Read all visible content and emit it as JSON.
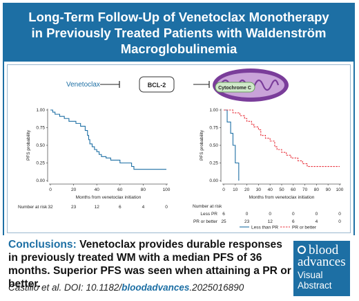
{
  "header": {
    "title_lines": [
      "Long-Term Follow-Up of Venetoclax Monotherapy",
      "in Previously Treated Patients with Waldenström",
      "Macroglobulinemia"
    ]
  },
  "mechanism": {
    "drug": "Venetoclax",
    "target": "BCL-2",
    "organelle_label": "Cytochrome C"
  },
  "colors": {
    "brand": "#1d6fa4",
    "series_dashed": "#e8323c",
    "series_solid": "#1d6fa4"
  },
  "chart_data": [
    {
      "type": "line",
      "title": "",
      "xlabel": "Months from venetoclax initiation",
      "ylabel": "PFS probability",
      "xlim": [
        0,
        100
      ],
      "ylim": [
        0,
        1
      ],
      "x_ticks": [
        0,
        20,
        40,
        60,
        80,
        100
      ],
      "y_ticks": [
        "0.00",
        "0.25",
        "0.50",
        "0.75",
        "1.00"
      ],
      "series": [
        {
          "style": "solid",
          "color": "#1d6fa4",
          "steps": [
            [
              0,
              1.0
            ],
            [
              2,
              0.97
            ],
            [
              4,
              0.94
            ],
            [
              8,
              0.91
            ],
            [
              12,
              0.88
            ],
            [
              16,
              0.84
            ],
            [
              22,
              0.81
            ],
            [
              26,
              0.77
            ],
            [
              30,
              0.71
            ],
            [
              32,
              0.64
            ],
            [
              33,
              0.58
            ],
            [
              34,
              0.52
            ],
            [
              36,
              0.48
            ],
            [
              38,
              0.44
            ],
            [
              40,
              0.41
            ],
            [
              42,
              0.37
            ],
            [
              44,
              0.34
            ],
            [
              48,
              0.32
            ],
            [
              52,
              0.29
            ],
            [
              60,
              0.25
            ],
            [
              70,
              0.2
            ],
            [
              72,
              0.16
            ],
            [
              100,
              0.16
            ]
          ]
        }
      ],
      "risk_table": {
        "label": "Number at risk",
        "values": [
          "32",
          "23",
          "12",
          "6",
          "4",
          "0"
        ]
      }
    },
    {
      "type": "line",
      "title": "",
      "xlabel": "Months from venetoclax initiation",
      "ylabel": "PFS probability",
      "xlim": [
        0,
        100
      ],
      "ylim": [
        0,
        1
      ],
      "x_ticks": [
        0,
        10,
        20,
        30,
        40,
        50,
        60,
        70,
        80,
        90,
        100
      ],
      "y_ticks": [
        "0.00",
        "0.25",
        "0.50",
        "0.75",
        "1.00"
      ],
      "series": [
        {
          "name": "Less than PR",
          "style": "solid",
          "color": "#1d6fa4",
          "steps": [
            [
              0,
              1.0
            ],
            [
              3,
              0.83
            ],
            [
              6,
              0.67
            ],
            [
              8,
              0.5
            ],
            [
              10,
              0.25
            ],
            [
              13,
              0.0
            ]
          ]
        },
        {
          "name": "PR or better",
          "style": "dashed",
          "color": "#e8323c",
          "steps": [
            [
              0,
              1.0
            ],
            [
              8,
              0.96
            ],
            [
              14,
              0.92
            ],
            [
              18,
              0.88
            ],
            [
              20,
              0.84
            ],
            [
              24,
              0.8
            ],
            [
              26,
              0.76
            ],
            [
              30,
              0.72
            ],
            [
              32,
              0.64
            ],
            [
              36,
              0.6
            ],
            [
              40,
              0.56
            ],
            [
              44,
              0.48
            ],
            [
              46,
              0.44
            ],
            [
              50,
              0.4
            ],
            [
              54,
              0.36
            ],
            [
              58,
              0.32
            ],
            [
              64,
              0.28
            ],
            [
              68,
              0.24
            ],
            [
              72,
              0.2
            ],
            [
              96,
              0.2
            ],
            [
              100,
              0.2
            ]
          ]
        }
      ],
      "risk_table": {
        "label": "Number at risk",
        "rows": [
          {
            "label": "Less PR",
            "values": [
              "6",
              "0",
              "0",
              "0",
              "0",
              "0"
            ]
          },
          {
            "label": "PR or better",
            "values": [
              "25",
              "23",
              "12",
              "6",
              "4",
              "0"
            ]
          }
        ]
      },
      "legend": {
        "placement": "bottom"
      }
    }
  ],
  "footer": {
    "conclusion_label": "Conclusions:",
    "conclusion_text": " Venetoclax provides durable responses in previously treated WM with a median PFS of 36 months. Superior PFS was seen when attaining a PR or better.",
    "citation_prefix": "Castillo et al. DOI: 10.1182/",
    "citation_journal": "bloodadvances",
    "citation_suffix": ".2025016890"
  },
  "logo": {
    "line1": "blood",
    "line2": "advances",
    "line3": "Visual",
    "line4": "Abstract"
  }
}
